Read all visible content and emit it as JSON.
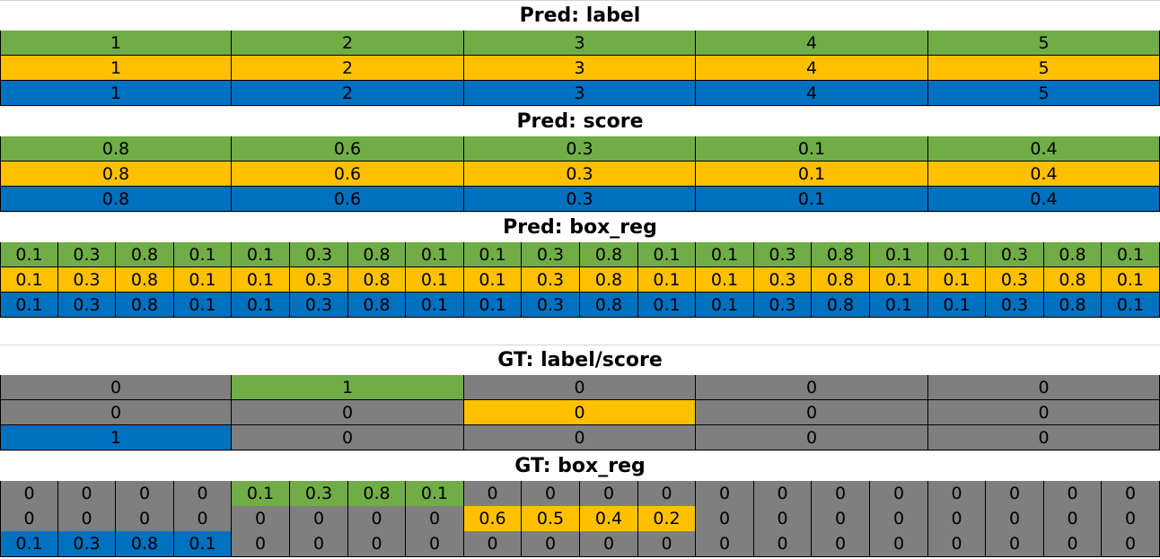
{
  "colors": {
    "green": "#70ad47",
    "yellow": "#ffc000",
    "blue": "#0070c0",
    "gray": "#7f7f7f",
    "white": "#ffffff"
  },
  "sections": [
    {
      "title": "Pred: label",
      "cols": 5,
      "rows": [
        {
          "color": "green",
          "cells": [
            "1",
            "2",
            "3",
            "4",
            "5"
          ]
        },
        {
          "color": "yellow",
          "cells": [
            "1",
            "2",
            "3",
            "4",
            "5"
          ]
        },
        {
          "color": "blue",
          "cells": [
            "1",
            "2",
            "3",
            "4",
            "5"
          ]
        }
      ]
    },
    {
      "title": "Pred: score",
      "cols": 5,
      "rows": [
        {
          "color": "green",
          "cells": [
            "0.8",
            "0.6",
            "0.3",
            "0.1",
            "0.4"
          ]
        },
        {
          "color": "yellow",
          "cells": [
            "0.8",
            "0.6",
            "0.3",
            "0.1",
            "0.4"
          ]
        },
        {
          "color": "blue",
          "cells": [
            "0.8",
            "0.6",
            "0.3",
            "0.1",
            "0.4"
          ]
        }
      ]
    },
    {
      "title": "Pred: box_reg",
      "cols": 20,
      "rows": [
        {
          "color": "green",
          "cells": [
            "0.1",
            "0.3",
            "0.8",
            "0.1",
            "0.1",
            "0.3",
            "0.8",
            "0.1",
            "0.1",
            "0.3",
            "0.8",
            "0.1",
            "0.1",
            "0.3",
            "0.8",
            "0.1",
            "0.1",
            "0.3",
            "0.8",
            "0.1"
          ]
        },
        {
          "color": "yellow",
          "cells": [
            "0.1",
            "0.3",
            "0.8",
            "0.1",
            "0.1",
            "0.3",
            "0.8",
            "0.1",
            "0.1",
            "0.3",
            "0.8",
            "0.1",
            "0.1",
            "0.3",
            "0.8",
            "0.1",
            "0.1",
            "0.3",
            "0.8",
            "0.1"
          ]
        },
        {
          "color": "blue",
          "cells": [
            "0.1",
            "0.3",
            "0.8",
            "0.1",
            "0.1",
            "0.3",
            "0.8",
            "0.1",
            "0.1",
            "0.3",
            "0.8",
            "0.1",
            "0.1",
            "0.3",
            "0.8",
            "0.1",
            "0.1",
            "0.3",
            "0.8",
            "0.1"
          ]
        }
      ]
    },
    {
      "title": "GT: label/score",
      "cols": 5,
      "rows": [
        {
          "cells": [
            "0",
            "1",
            "0",
            "0",
            "0"
          ],
          "colors": [
            "gray",
            "green",
            "gray",
            "gray",
            "gray"
          ]
        },
        {
          "cells": [
            "0",
            "0",
            "0",
            "0",
            "0"
          ],
          "colors": [
            "gray",
            "gray",
            "yellow",
            "gray",
            "gray"
          ]
        },
        {
          "cells": [
            "1",
            "0",
            "0",
            "0",
            "0"
          ],
          "colors": [
            "blue",
            "gray",
            "gray",
            "gray",
            "gray"
          ]
        }
      ]
    },
    {
      "title": "GT: box_reg",
      "cols": 20,
      "rows": [
        {
          "cells": [
            "0",
            "0",
            "0",
            "0",
            "0.1",
            "0.3",
            "0.8",
            "0.1",
            "0",
            "0",
            "0",
            "0",
            "0",
            "0",
            "0",
            "0",
            "0",
            "0",
            "0",
            "0"
          ],
          "colors": [
            "gray",
            "gray",
            "gray",
            "gray",
            "green",
            "green",
            "green",
            "green",
            "gray",
            "gray",
            "gray",
            "gray",
            "gray",
            "gray",
            "gray",
            "gray",
            "gray",
            "gray",
            "gray",
            "gray"
          ]
        },
        {
          "cells": [
            "0",
            "0",
            "0",
            "0",
            "0",
            "0",
            "0",
            "0",
            "0.6",
            "0.5",
            "0.4",
            "0.2",
            "0",
            "0",
            "0",
            "0",
            "0",
            "0",
            "0",
            "0"
          ],
          "colors": [
            "gray",
            "gray",
            "gray",
            "gray",
            "gray",
            "gray",
            "gray",
            "gray",
            "yellow",
            "yellow",
            "yellow",
            "yellow",
            "gray",
            "gray",
            "gray",
            "gray",
            "gray",
            "gray",
            "gray",
            "gray"
          ]
        },
        {
          "cells": [
            "0.1",
            "0.3",
            "0.8",
            "0.1",
            "0",
            "0",
            "0",
            "0",
            "0",
            "0",
            "0",
            "0",
            "0",
            "0",
            "0",
            "0",
            "0",
            "0",
            "0",
            "0"
          ],
          "colors": [
            "blue",
            "blue",
            "blue",
            "blue",
            "gray",
            "gray",
            "gray",
            "gray",
            "gray",
            "gray",
            "gray",
            "gray",
            "gray",
            "gray",
            "gray",
            "gray",
            "gray",
            "gray",
            "gray",
            "gray"
          ]
        }
      ]
    }
  ]
}
